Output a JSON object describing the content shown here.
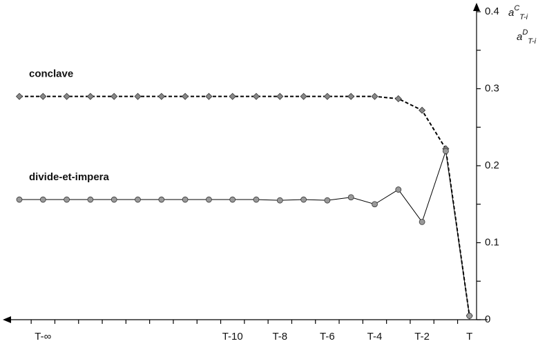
{
  "chart_data": {
    "type": "line",
    "y_axis_labels": [
      {
        "base": "a",
        "sup": "C",
        "sub": "T-i"
      },
      {
        "base": "a",
        "sup": "D",
        "sub": "T-i"
      }
    ],
    "categories": [
      null,
      "T-∞",
      null,
      null,
      null,
      null,
      null,
      null,
      null,
      "T-10",
      null,
      "T-8",
      null,
      "T-6",
      null,
      "T-4",
      null,
      "T-2",
      null,
      "T"
    ],
    "series": [
      {
        "name": "conclave",
        "color": "#888888",
        "marker": "diamond",
        "dashed": true,
        "values": [
          0.29,
          0.29,
          0.29,
          0.29,
          0.29,
          0.29,
          0.29,
          0.29,
          0.29,
          0.29,
          0.29,
          0.29,
          0.29,
          0.29,
          0.29,
          0.29,
          0.287,
          0.272,
          0.222,
          0.005
        ]
      },
      {
        "name": "divide-et-impera",
        "color": "#999999",
        "marker": "circle",
        "dashed": false,
        "values": [
          0.156,
          0.156,
          0.156,
          0.156,
          0.156,
          0.156,
          0.156,
          0.156,
          0.156,
          0.156,
          0.156,
          0.155,
          0.156,
          0.155,
          0.159,
          0.15,
          0.169,
          0.127,
          0.219,
          0.005
        ]
      }
    ],
    "ylim": [
      0,
      0.4
    ],
    "yticks": [
      0,
      0.1,
      0.2,
      0.3,
      0.4
    ],
    "yminorticks": [
      0.05,
      0.15,
      0.25,
      0.35
    ]
  }
}
